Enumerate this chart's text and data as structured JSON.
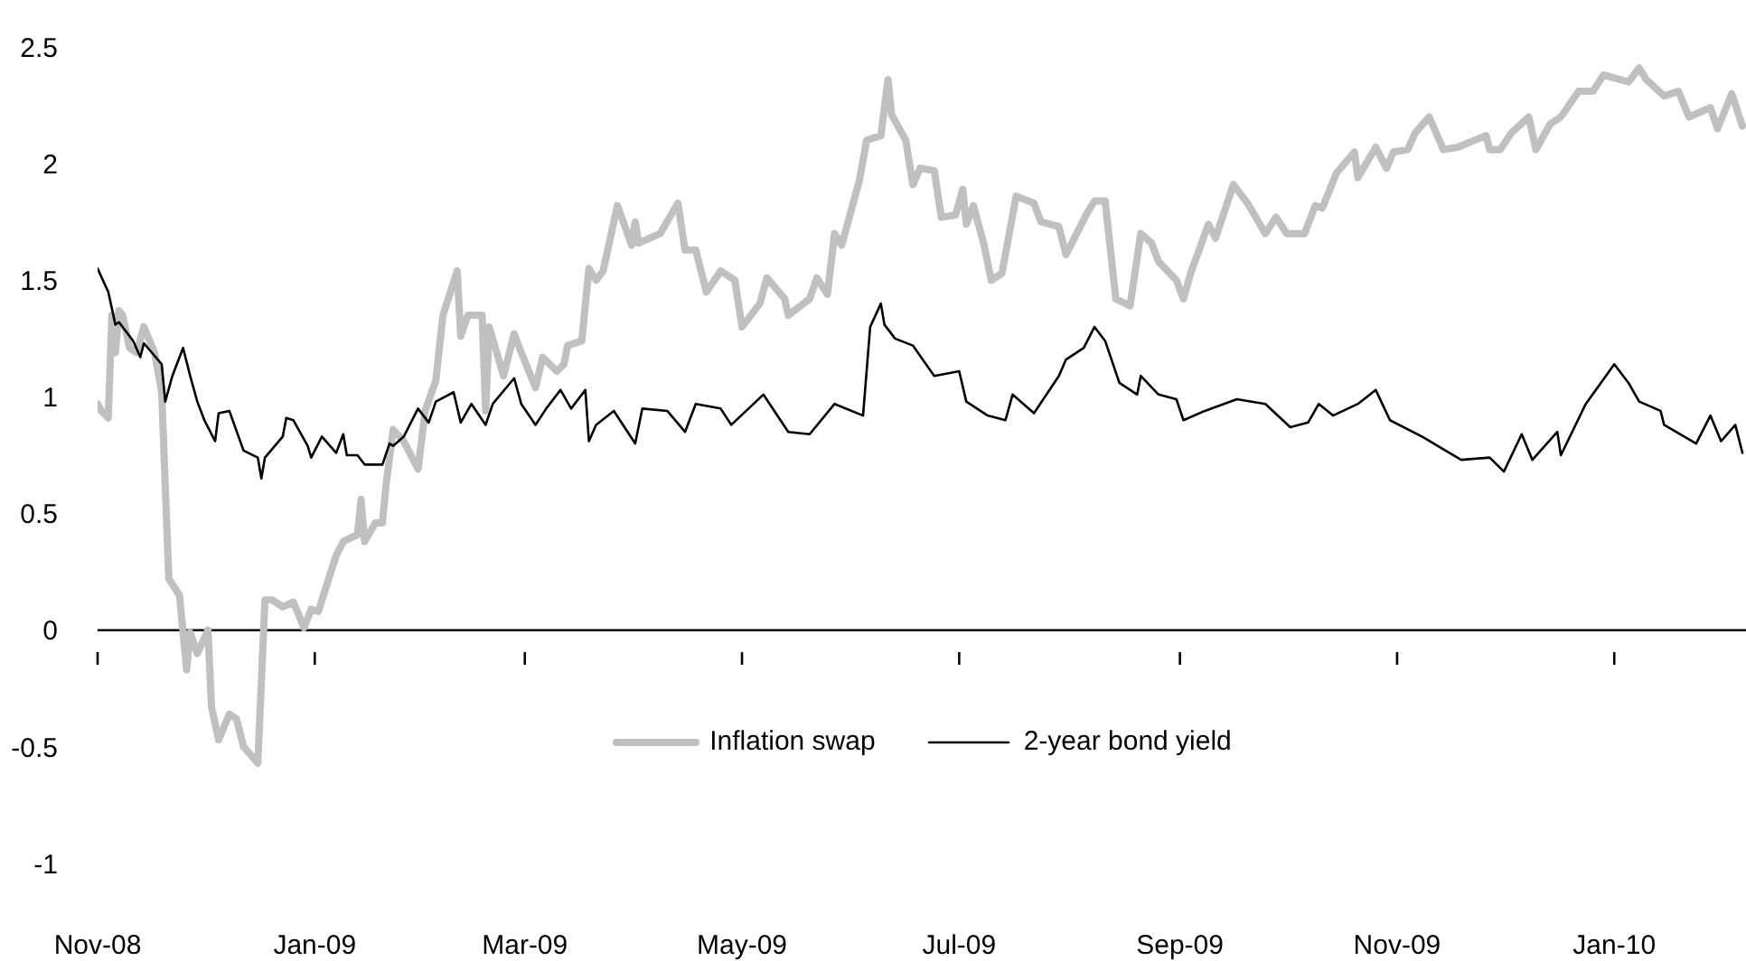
{
  "chart_data": {
    "type": "line",
    "xlim": [
      "2008-11-01",
      "2010-02-07"
    ],
    "ylim": [
      -1,
      2.5
    ],
    "yticks": [
      -1,
      -0.5,
      0,
      0.5,
      1,
      1.5,
      2,
      2.5
    ],
    "xticks": [
      {
        "value": "2008-11-01",
        "label": "Nov-08"
      },
      {
        "value": "2009-01-01",
        "label": "Jan-09"
      },
      {
        "value": "2009-03-01",
        "label": "Mar-09"
      },
      {
        "value": "2009-05-01",
        "label": "May-09"
      },
      {
        "value": "2009-07-01",
        "label": "Jul-09"
      },
      {
        "value": "2009-09-01",
        "label": "Sep-09"
      },
      {
        "value": "2009-11-01",
        "label": "Nov-09"
      },
      {
        "value": "2010-01-01",
        "label": "Jan-10"
      }
    ],
    "grid": false,
    "legend": "bottom",
    "ref_lines": [
      {
        "axis": "y",
        "value": 0,
        "color": "#000000",
        "line_style": "solid"
      }
    ],
    "marker": "none",
    "line_style": "solid",
    "series": [
      {
        "name": "Inflation swap",
        "color": "#c0c0c0",
        "x": [
          "2008-11-01",
          "2008-11-02",
          "2008-11-04",
          "2008-11-05",
          "2008-11-06",
          "2008-11-07",
          "2008-11-08",
          "2008-11-10",
          "2008-11-12",
          "2008-11-14",
          "2008-11-17",
          "2008-11-19",
          "2008-11-21",
          "2008-11-24",
          "2008-11-26",
          "2008-11-27",
          "2008-11-29",
          "2008-12-02",
          "2008-12-03",
          "2008-12-05",
          "2008-12-08",
          "2008-12-10",
          "2008-12-12",
          "2008-12-16",
          "2008-12-18",
          "2008-12-20",
          "2008-12-23",
          "2008-12-26",
          "2008-12-29",
          "2008-12-31",
          "2009-01-02",
          "2009-01-07",
          "2009-01-09",
          "2009-01-13",
          "2009-01-14",
          "2009-01-15",
          "2009-01-18",
          "2009-01-20",
          "2009-01-21",
          "2009-01-23",
          "2009-01-26",
          "2009-01-30",
          "2009-02-01",
          "2009-02-04",
          "2009-02-06",
          "2009-02-10",
          "2009-02-11",
          "2009-02-13",
          "2009-02-17",
          "2009-02-18",
          "2009-02-19",
          "2009-02-23",
          "2009-02-26",
          "2009-02-28",
          "2009-03-04",
          "2009-03-06",
          "2009-03-10",
          "2009-03-12",
          "2009-03-13",
          "2009-03-17",
          "2009-03-19",
          "2009-03-21",
          "2009-03-23",
          "2009-03-27",
          "2009-03-31",
          "2009-04-01",
          "2009-04-02",
          "2009-04-08",
          "2009-04-13",
          "2009-04-15",
          "2009-04-18",
          "2009-04-21",
          "2009-04-25",
          "2009-04-29",
          "2009-05-01",
          "2009-05-06",
          "2009-05-08",
          "2009-05-13",
          "2009-05-14",
          "2009-05-20",
          "2009-05-22",
          "2009-05-25",
          "2009-05-27",
          "2009-05-29",
          "2009-06-03",
          "2009-06-05",
          "2009-06-09",
          "2009-06-11",
          "2009-06-12",
          "2009-06-16",
          "2009-06-18",
          "2009-06-20",
          "2009-06-24",
          "2009-06-26",
          "2009-06-30",
          "2009-07-02",
          "2009-07-03",
          "2009-07-05",
          "2009-07-08",
          "2009-07-10",
          "2009-07-13",
          "2009-07-17",
          "2009-07-22",
          "2009-07-24",
          "2009-07-29",
          "2009-07-31",
          "2009-08-06",
          "2009-08-08",
          "2009-08-11",
          "2009-08-14",
          "2009-08-18",
          "2009-08-21",
          "2009-08-24",
          "2009-08-26",
          "2009-08-31",
          "2009-09-02",
          "2009-09-04",
          "2009-09-09",
          "2009-09-11",
          "2009-09-16",
          "2009-09-20",
          "2009-09-25",
          "2009-09-28",
          "2009-10-01",
          "2009-10-06",
          "2009-10-09",
          "2009-10-11",
          "2009-10-15",
          "2009-10-20",
          "2009-10-21",
          "2009-10-26",
          "2009-10-29",
          "2009-10-31",
          "2009-11-04",
          "2009-11-06",
          "2009-11-10",
          "2009-11-14",
          "2009-11-18",
          "2009-11-26",
          "2009-11-27",
          "2009-11-30",
          "2009-12-03",
          "2009-12-08",
          "2009-12-10",
          "2009-12-14",
          "2009-12-17",
          "2009-12-22",
          "2009-12-26",
          "2009-12-29",
          "2010-01-05",
          "2010-01-08",
          "2010-01-10",
          "2010-01-15",
          "2010-01-19",
          "2010-01-22",
          "2010-01-28",
          "2010-01-30",
          "2010-02-03",
          "2010-02-06"
        ],
        "values": [
          0.97,
          0.94,
          0.91,
          1.35,
          1.19,
          1.37,
          1.35,
          1.21,
          1.19,
          1.3,
          1.19,
          1.02,
          0.22,
          0.15,
          -0.17,
          -0.01,
          -0.1,
          0.0,
          -0.33,
          -0.47,
          -0.36,
          -0.38,
          -0.5,
          -0.57,
          0.13,
          0.13,
          0.1,
          0.12,
          0.01,
          0.09,
          0.08,
          0.32,
          0.38,
          0.41,
          0.56,
          0.38,
          0.46,
          0.46,
          0.62,
          0.86,
          0.81,
          0.69,
          0.94,
          1.07,
          1.35,
          1.54,
          1.26,
          1.35,
          1.35,
          0.94,
          1.3,
          1.09,
          1.27,
          1.19,
          1.04,
          1.17,
          1.11,
          1.14,
          1.22,
          1.24,
          1.55,
          1.5,
          1.54,
          1.82,
          1.65,
          1.75,
          1.66,
          1.7,
          1.83,
          1.63,
          1.63,
          1.45,
          1.54,
          1.5,
          1.3,
          1.4,
          1.51,
          1.42,
          1.35,
          1.42,
          1.51,
          1.44,
          1.7,
          1.65,
          1.93,
          2.1,
          2.12,
          2.36,
          2.21,
          2.1,
          1.91,
          1.98,
          1.97,
          1.77,
          1.78,
          1.89,
          1.74,
          1.82,
          1.65,
          1.5,
          1.53,
          1.86,
          1.83,
          1.75,
          1.73,
          1.61,
          1.79,
          1.84,
          1.84,
          1.42,
          1.39,
          1.7,
          1.66,
          1.58,
          1.5,
          1.42,
          1.53,
          1.74,
          1.68,
          1.91,
          1.83,
          1.7,
          1.77,
          1.7,
          1.7,
          1.82,
          1.81,
          1.96,
          2.05,
          1.94,
          2.07,
          1.98,
          2.05,
          2.06,
          2.13,
          2.2,
          2.06,
          2.07,
          2.12,
          2.06,
          2.06,
          2.13,
          2.2,
          2.06,
          2.17,
          2.2,
          2.31,
          2.31,
          2.38,
          2.35,
          2.41,
          2.36,
          2.29,
          2.31,
          2.2,
          2.24,
          2.15,
          2.3,
          2.16
        ]
      },
      {
        "name": "2-year bond yield",
        "color": "#000000",
        "x": [
          "2008-11-01",
          "2008-11-04",
          "2008-11-06",
          "2008-11-07",
          "2008-11-11",
          "2008-11-13",
          "2008-11-14",
          "2008-11-19",
          "2008-11-20",
          "2008-11-22",
          "2008-11-25",
          "2008-11-27",
          "2008-11-29",
          "2008-12-01",
          "2008-12-04",
          "2008-12-05",
          "2008-12-08",
          "2008-12-12",
          "2008-12-16",
          "2008-12-17",
          "2008-12-18",
          "2008-12-23",
          "2008-12-24",
          "2008-12-26",
          "2008-12-30",
          "2008-12-31",
          "2009-01-03",
          "2009-01-07",
          "2009-01-09",
          "2009-01-10",
          "2009-01-13",
          "2009-01-15",
          "2009-01-20",
          "2009-01-22",
          "2009-01-23",
          "2009-01-26",
          "2009-01-30",
          "2009-02-02",
          "2009-02-04",
          "2009-02-09",
          "2009-02-11",
          "2009-02-14",
          "2009-02-18",
          "2009-02-20",
          "2009-02-26",
          "2009-02-28",
          "2009-03-04",
          "2009-03-07",
          "2009-03-11",
          "2009-03-14",
          "2009-03-18",
          "2009-03-19",
          "2009-03-21",
          "2009-03-26",
          "2009-04-01",
          "2009-04-03",
          "2009-04-10",
          "2009-04-15",
          "2009-04-18",
          "2009-04-25",
          "2009-04-28",
          "2009-05-07",
          "2009-05-14",
          "2009-05-20",
          "2009-05-27",
          "2009-06-04",
          "2009-06-06",
          "2009-06-09",
          "2009-06-10",
          "2009-06-13",
          "2009-06-18",
          "2009-06-24",
          "2009-07-01",
          "2009-07-03",
          "2009-07-09",
          "2009-07-14",
          "2009-07-16",
          "2009-07-22",
          "2009-07-29",
          "2009-07-31",
          "2009-08-05",
          "2009-08-08",
          "2009-08-11",
          "2009-08-15",
          "2009-08-20",
          "2009-08-21",
          "2009-08-26",
          "2009-08-31",
          "2009-09-02",
          "2009-09-08",
          "2009-09-17",
          "2009-09-25",
          "2009-10-02",
          "2009-10-07",
          "2009-10-10",
          "2009-10-14",
          "2009-10-21",
          "2009-10-26",
          "2009-10-30",
          "2009-11-08",
          "2009-11-19",
          "2009-11-27",
          "2009-12-01",
          "2009-12-06",
          "2009-12-09",
          "2009-12-16",
          "2009-12-17",
          "2009-12-24",
          "2010-01-01",
          "2010-01-05",
          "2010-01-08",
          "2010-01-14",
          "2010-01-15",
          "2010-01-24",
          "2010-01-28",
          "2010-01-31",
          "2010-02-04",
          "2010-02-06"
        ],
        "values": [
          1.55,
          1.45,
          1.31,
          1.32,
          1.24,
          1.17,
          1.23,
          1.14,
          0.98,
          1.09,
          1.21,
          1.09,
          0.98,
          0.9,
          0.81,
          0.93,
          0.94,
          0.77,
          0.74,
          0.65,
          0.74,
          0.83,
          0.91,
          0.9,
          0.79,
          0.74,
          0.83,
          0.76,
          0.84,
          0.75,
          0.75,
          0.71,
          0.71,
          0.8,
          0.79,
          0.83,
          0.95,
          0.89,
          0.98,
          1.02,
          0.89,
          0.97,
          0.88,
          0.97,
          1.08,
          0.97,
          0.88,
          0.95,
          1.03,
          0.95,
          1.03,
          0.81,
          0.88,
          0.94,
          0.8,
          0.95,
          0.94,
          0.85,
          0.97,
          0.95,
          0.88,
          1.01,
          0.85,
          0.84,
          0.97,
          0.92,
          1.3,
          1.4,
          1.31,
          1.25,
          1.22,
          1.09,
          1.11,
          0.98,
          0.92,
          0.9,
          1.01,
          0.93,
          1.09,
          1.16,
          1.21,
          1.3,
          1.24,
          1.06,
          1.01,
          1.09,
          1.01,
          0.99,
          0.9,
          0.94,
          0.99,
          0.97,
          0.87,
          0.89,
          0.97,
          0.92,
          0.97,
          1.03,
          0.9,
          0.83,
          0.73,
          0.74,
          0.68,
          0.84,
          0.73,
          0.85,
          0.75,
          0.97,
          1.14,
          1.06,
          0.98,
          0.94,
          0.88,
          0.8,
          0.92,
          0.81,
          0.88,
          0.76
        ]
      }
    ]
  }
}
